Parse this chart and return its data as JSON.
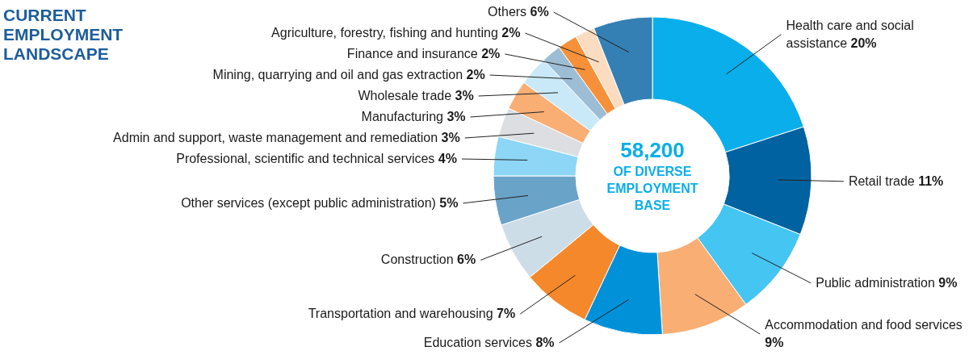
{
  "chart_data": {
    "type": "donut",
    "title": "CURRENT EMPLOYMENT LANDSCAPE",
    "annotations": [
      "58,200",
      "OF DIVERSE EMPLOYMENT BASE"
    ],
    "categories": [
      "Health care and social assistance",
      "Retail trade",
      "Public administration",
      "Accommodation and food services",
      "Education services",
      "Transportation and warehousing",
      "Construction",
      "Other services (except public administration)",
      "Professional, scientific and technical services",
      "Admin and support, waste management and remediation",
      "Manufacturing",
      "Wholesale trade",
      "Mining, quarrying and oil and gas extraction",
      "Finance and insurance",
      "Agriculture, forestry, fishing and hunting",
      "Others"
    ],
    "values": [
      20,
      11,
      9,
      9,
      8,
      7,
      6,
      5,
      4,
      3,
      3,
      3,
      2,
      2,
      2,
      6
    ],
    "value_labels": [
      "20%",
      "11%",
      "9%",
      "9%",
      "8%",
      "7%",
      "6%",
      "5%",
      "4%",
      "3%",
      "3%",
      "3%",
      "2%",
      "2%",
      "2%",
      "6%"
    ],
    "colors": [
      "#0aaeea",
      "#0062a0",
      "#45c5f2",
      "#f9ae74",
      "#0091d9",
      "#f5882a",
      "#cddde8",
      "#6aa3c8",
      "#8dd6f5",
      "#dcdee1",
      "#f9ae74",
      "#c9e9f8",
      "#9dbdd5",
      "#f6913a",
      "#fcdcc0",
      "#3480b4"
    ]
  }
}
